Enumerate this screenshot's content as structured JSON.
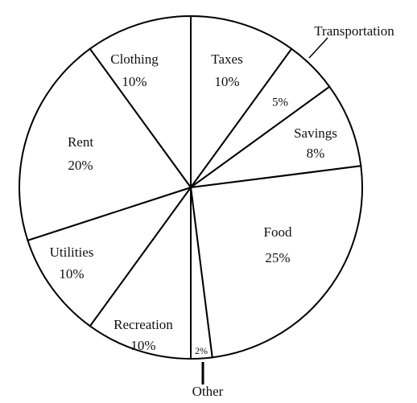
{
  "chart_data": {
    "type": "pie",
    "categories": [
      "Taxes",
      "Transportation",
      "Savings",
      "Food",
      "Other",
      "Recreation",
      "Utilities",
      "Rent",
      "Clothing"
    ],
    "values": [
      10,
      5,
      8,
      25,
      2,
      10,
      10,
      20,
      10
    ],
    "value_labels": [
      "10%",
      "5%",
      "8%",
      "25%",
      "2%",
      "10%",
      "10%",
      "20%",
      "10%"
    ],
    "fill": "#ffffff",
    "stroke": "#000000"
  }
}
